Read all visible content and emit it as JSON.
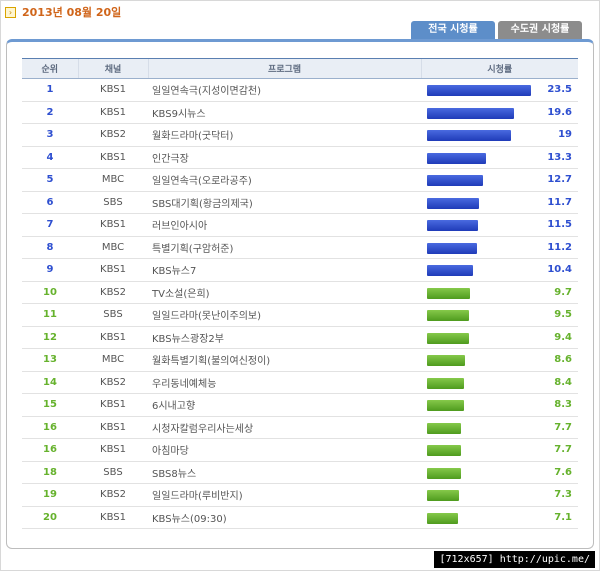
{
  "header": {
    "date": "2013년 08월 20일",
    "arrow_icon": "›"
  },
  "tabs": [
    {
      "label": "전국 시청률",
      "active": true
    },
    {
      "label": "수도권 시청률",
      "active": false
    }
  ],
  "table": {
    "columns": [
      "순위",
      "채널",
      "프로그램",
      "시청률"
    ],
    "max_rating": 23.5,
    "colors": {
      "top": "#2e4fd0",
      "rest": "#66b22d"
    },
    "rows": [
      {
        "rank": "1",
        "channel": "KBS1",
        "program": "일일연속극(지성이면감천)",
        "rating": "23.5",
        "value": 23.5,
        "tier": "top"
      },
      {
        "rank": "2",
        "channel": "KBS1",
        "program": "KBS9시뉴스",
        "rating": "19.6",
        "value": 19.6,
        "tier": "top"
      },
      {
        "rank": "3",
        "channel": "KBS2",
        "program": "월화드라마(굿닥터)",
        "rating": "19",
        "value": 19,
        "tier": "top"
      },
      {
        "rank": "4",
        "channel": "KBS1",
        "program": "인간극장",
        "rating": "13.3",
        "value": 13.3,
        "tier": "top"
      },
      {
        "rank": "5",
        "channel": "MBC",
        "program": "일일연속극(오로라공주)",
        "rating": "12.7",
        "value": 12.7,
        "tier": "top"
      },
      {
        "rank": "6",
        "channel": "SBS",
        "program": "SBS대기획(황금의제국)",
        "rating": "11.7",
        "value": 11.7,
        "tier": "top"
      },
      {
        "rank": "7",
        "channel": "KBS1",
        "program": "러브인아시아",
        "rating": "11.5",
        "value": 11.5,
        "tier": "top"
      },
      {
        "rank": "8",
        "channel": "MBC",
        "program": "특별기획(구암허준)",
        "rating": "11.2",
        "value": 11.2,
        "tier": "top"
      },
      {
        "rank": "9",
        "channel": "KBS1",
        "program": "KBS뉴스7",
        "rating": "10.4",
        "value": 10.4,
        "tier": "top"
      },
      {
        "rank": "10",
        "channel": "KBS2",
        "program": "TV소설(은희)",
        "rating": "9.7",
        "value": 9.7,
        "tier": "rest"
      },
      {
        "rank": "11",
        "channel": "SBS",
        "program": "일일드라마(못난이주의보)",
        "rating": "9.5",
        "value": 9.5,
        "tier": "rest"
      },
      {
        "rank": "12",
        "channel": "KBS1",
        "program": "KBS뉴스광장2부",
        "rating": "9.4",
        "value": 9.4,
        "tier": "rest"
      },
      {
        "rank": "13",
        "channel": "MBC",
        "program": "월화특별기획(불의여신정이)",
        "rating": "8.6",
        "value": 8.6,
        "tier": "rest"
      },
      {
        "rank": "14",
        "channel": "KBS2",
        "program": "우리동네예체능",
        "rating": "8.4",
        "value": 8.4,
        "tier": "rest"
      },
      {
        "rank": "15",
        "channel": "KBS1",
        "program": "6시내고향",
        "rating": "8.3",
        "value": 8.3,
        "tier": "rest"
      },
      {
        "rank": "16",
        "channel": "KBS1",
        "program": "시청자칼럼우리사는세상",
        "rating": "7.7",
        "value": 7.7,
        "tier": "rest"
      },
      {
        "rank": "16",
        "channel": "KBS1",
        "program": "아침마당",
        "rating": "7.7",
        "value": 7.7,
        "tier": "rest"
      },
      {
        "rank": "18",
        "channel": "SBS",
        "program": "SBS8뉴스",
        "rating": "7.6",
        "value": 7.6,
        "tier": "rest"
      },
      {
        "rank": "19",
        "channel": "KBS2",
        "program": "일일드라마(루비반지)",
        "rating": "7.3",
        "value": 7.3,
        "tier": "rest"
      },
      {
        "rank": "20",
        "channel": "KBS1",
        "program": "KBS뉴스(09:30)",
        "rating": "7.1",
        "value": 7.1,
        "tier": "rest"
      }
    ]
  },
  "watermark": "[712x657] http://upic.me/"
}
